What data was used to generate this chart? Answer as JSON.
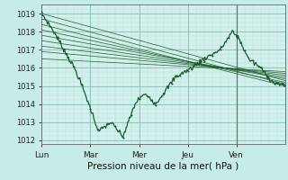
{
  "background_color": "#c5ece6",
  "plot_bg_color": "#d4f0ec",
  "grid_minor_color": "#b0ddd8",
  "grid_major_color": "#8ec8c0",
  "line_color": "#1a5c28",
  "xlabel": "Pression niveau de la mer( hPa )",
  "ylim": [
    1011.8,
    1019.5
  ],
  "yticks": [
    1012,
    1013,
    1014,
    1015,
    1016,
    1017,
    1018,
    1019
  ],
  "day_labels": [
    "Lun",
    "Mar",
    "Mer",
    "Jeu",
    "Ven"
  ],
  "day_positions": [
    0,
    60,
    120,
    180,
    240
  ],
  "total_points": 300,
  "forecast_starts": [
    1019.0,
    1018.7,
    1018.4,
    1018.1,
    1017.8,
    1017.5,
    1017.2,
    1016.9,
    1016.5
  ],
  "forecast_ends": [
    1015.3,
    1015.1,
    1015.0,
    1015.2,
    1015.4,
    1015.5,
    1015.6,
    1015.7,
    1015.8
  ]
}
